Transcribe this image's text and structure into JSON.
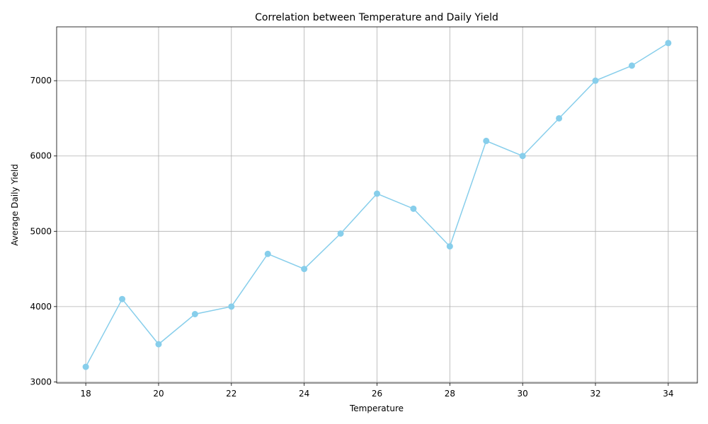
{
  "chart_data": {
    "type": "line",
    "title": "Correlation between Temperature and Daily Yield",
    "xlabel": "Temperature",
    "ylabel": "Average Daily Yield",
    "x": [
      18,
      19,
      20,
      21,
      22,
      23,
      24,
      25,
      26,
      27,
      28,
      29,
      30,
      31,
      32,
      33,
      34
    ],
    "series": [
      {
        "values": [
          3200,
          4100,
          3500,
          3900,
          4000,
          4700,
          4500,
          4970,
          5500,
          5300,
          4800,
          6200,
          6000,
          6500,
          7000,
          7200,
          7500
        ],
        "color": "#87ceeb",
        "marker": "circle"
      }
    ],
    "xlim": [
      17.2,
      34.8
    ],
    "ylim": [
      2985,
      7715
    ],
    "xticks": [
      18,
      20,
      22,
      24,
      26,
      28,
      30,
      32,
      34
    ],
    "yticks": [
      3000,
      4000,
      5000,
      6000,
      7000
    ],
    "grid": true,
    "legend": "none"
  }
}
